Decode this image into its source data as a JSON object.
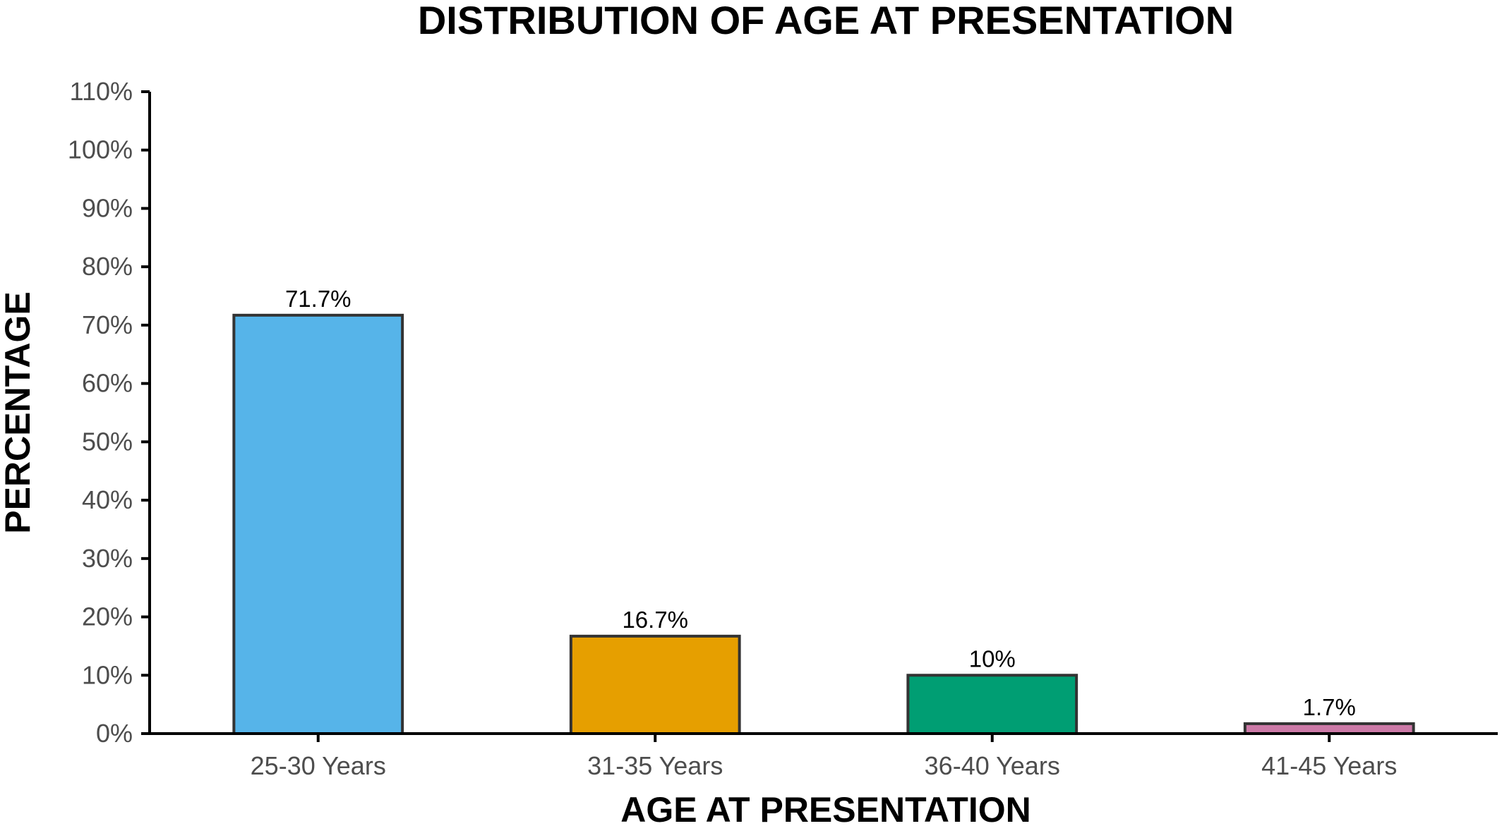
{
  "chart_data": {
    "type": "bar",
    "title": "DISTRIBUTION OF AGE AT PRESENTATION",
    "xlabel": "AGE AT PRESENTATION",
    "ylabel": "PERCENTAGE",
    "categories": [
      "25-30 Years",
      "31-35 Years",
      "36-40 Years",
      "41-45 Years"
    ],
    "values": [
      71.7,
      16.7,
      10,
      1.7
    ],
    "data_labels": [
      "71.7%",
      "16.7%",
      "10%",
      "1.7%"
    ],
    "colors": [
      "#56B4E9",
      "#E69F00",
      "#009E73",
      "#CC79A7"
    ],
    "ylim": [
      0,
      110
    ],
    "yticks": [
      0,
      10,
      20,
      30,
      40,
      50,
      60,
      70,
      80,
      90,
      100,
      110
    ],
    "ytick_labels": [
      "0%",
      "10%",
      "20%",
      "30%",
      "40%",
      "50%",
      "60%",
      "70%",
      "80%",
      "90%",
      "100%",
      "110%"
    ],
    "grid": false,
    "legend": "none"
  }
}
